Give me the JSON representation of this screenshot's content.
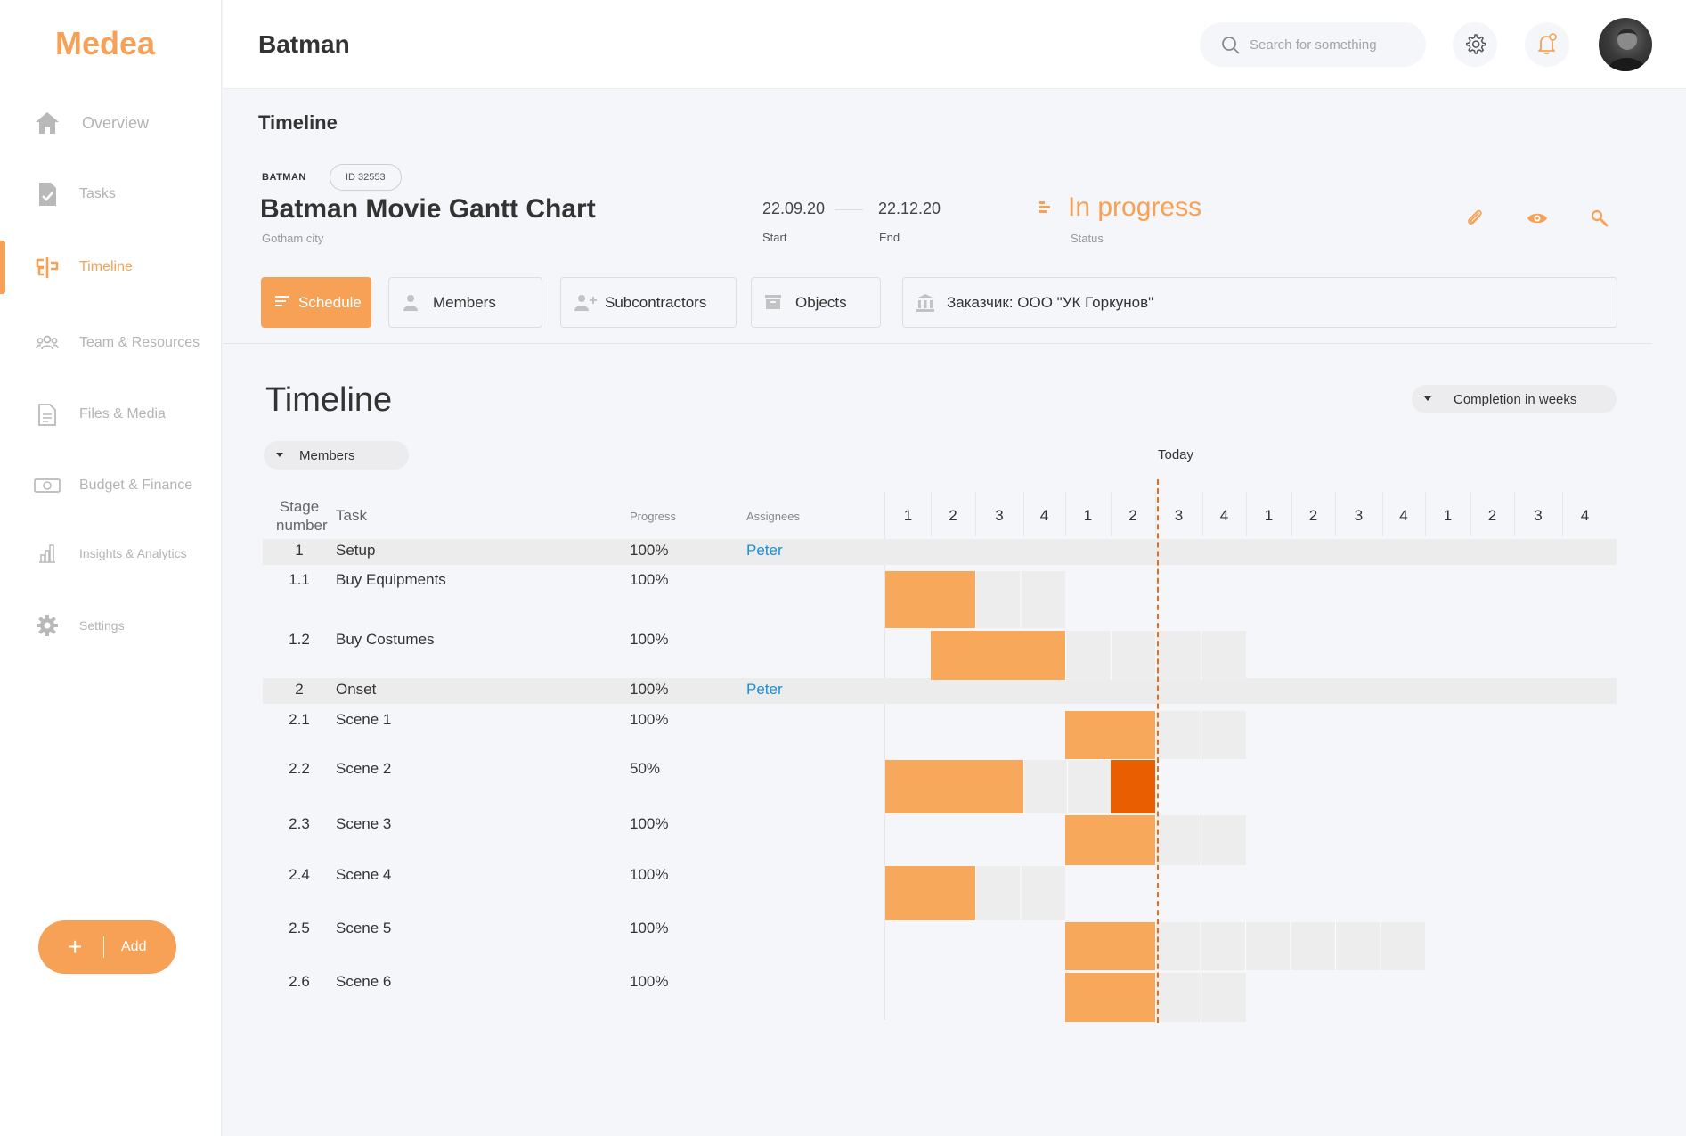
{
  "app": {
    "logo": "Medea",
    "title": "Batman"
  },
  "sidebar": {
    "items": [
      {
        "label": "Overview",
        "icon": "home-icon",
        "active": false
      },
      {
        "label": "Tasks",
        "icon": "task-document-icon",
        "active": false
      },
      {
        "label": "Timeline",
        "icon": "timeline-icon",
        "active": true
      },
      {
        "label": "Team & Resources",
        "icon": "team-icon",
        "active": false
      },
      {
        "label": "Files & Media",
        "icon": "files-icon",
        "active": false
      },
      {
        "label": "Budget & Finance",
        "icon": "money-icon",
        "active": false
      },
      {
        "label": "Insights & Analytics",
        "icon": "bar-chart-icon",
        "active": false
      },
      {
        "label": "Settings",
        "icon": "gear-icon",
        "active": false
      }
    ],
    "add_label": "Add"
  },
  "header": {
    "search_placeholder": "Search for something"
  },
  "page": {
    "title": "Timeline"
  },
  "project": {
    "tag": "BATMAN",
    "id": "ID 32553",
    "name": "Batman Movie Gantt Chart",
    "location": "Gotham city",
    "start_date": "22.09.20",
    "start_label": "Start",
    "end_date": "22.12.20",
    "end_label": "End",
    "status": "In progress",
    "status_label": "Status"
  },
  "tabs": [
    {
      "label": "Schedule",
      "icon": "list-icon",
      "active": true
    },
    {
      "label": "Members",
      "icon": "person-icon",
      "active": false
    },
    {
      "label": "Subcontractors",
      "icon": "add-person-icon",
      "active": false
    },
    {
      "label": "Objects",
      "icon": "box-icon",
      "active": false
    },
    {
      "label": "Заказчик: ООО \"УК Горкунов\"",
      "icon": "bank-icon",
      "active": false
    }
  ],
  "timeline": {
    "title": "Timeline",
    "completion_select": "Completion in weeks",
    "group_select": "Members",
    "today_label": "Today",
    "columns": {
      "stage_line1": "Stage",
      "stage_line2": "number",
      "task": "Task",
      "progress": "Progress",
      "assignees": "Assignees"
    },
    "weeks": [
      "1",
      "2",
      "3",
      "4",
      "1",
      "2",
      "3",
      "4",
      "1",
      "2",
      "3",
      "4",
      "1",
      "2",
      "3",
      "4"
    ],
    "colors": {
      "done": "#f7a85a",
      "current": "#e95f00",
      "remaining": "#ededed",
      "today": "#e76c1c"
    },
    "rows": [
      {
        "stage": "1",
        "task": "Setup",
        "progress": "100%",
        "assignee": "Peter",
        "group": true
      },
      {
        "stage": "1.1",
        "task": "Buy Equipments",
        "progress": "100%",
        "assignee": "",
        "group": false
      },
      {
        "stage": "1.2",
        "task": "Buy Costumes",
        "progress": "100%",
        "assignee": "",
        "group": false
      },
      {
        "stage": "2",
        "task": "Onset",
        "progress": "100%",
        "assignee": "Peter",
        "group": true
      },
      {
        "stage": "2.1",
        "task": "Scene 1",
        "progress": "100%",
        "assignee": "",
        "group": false
      },
      {
        "stage": "2.2",
        "task": "Scene 2",
        "progress": "50%",
        "assignee": "",
        "group": false
      },
      {
        "stage": "2.3",
        "task": "Scene 3",
        "progress": "100%",
        "assignee": "",
        "group": false
      },
      {
        "stage": "2.4",
        "task": "Scene 4",
        "progress": "100%",
        "assignee": "",
        "group": false
      },
      {
        "stage": "2.5",
        "task": "Scene 5",
        "progress": "100%",
        "assignee": "",
        "group": false
      },
      {
        "stage": "2.6",
        "task": "Scene 6",
        "progress": "100%",
        "assignee": "",
        "group": false
      }
    ]
  }
}
